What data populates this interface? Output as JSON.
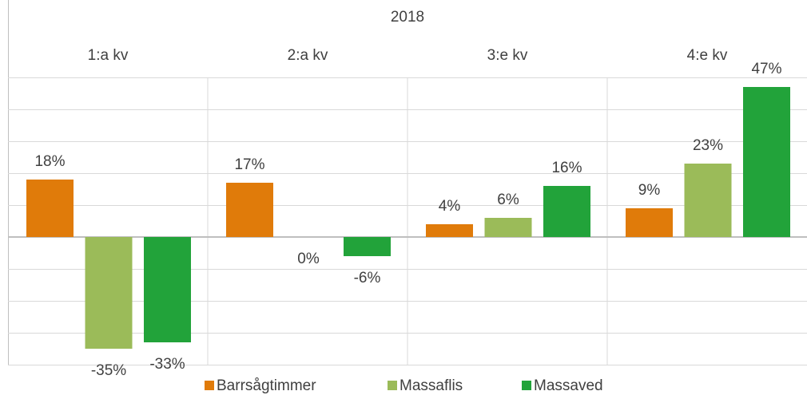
{
  "chart_data": {
    "type": "bar",
    "group_label": "2018",
    "categories": [
      "1:a kv",
      "2:a kv",
      "3:e kv",
      "4:e kv"
    ],
    "series": [
      {
        "name": "Barrsågtimmer",
        "color": "#e07b0a",
        "values": [
          18,
          17,
          4,
          9
        ],
        "value_labels": [
          "18%",
          "17%",
          "4%",
          "9%"
        ]
      },
      {
        "name": "Massaflis",
        "color": "#9bbb59",
        "values": [
          -35,
          0,
          6,
          23
        ],
        "value_labels": [
          "-35%",
          "0%",
          "6%",
          "23%"
        ]
      },
      {
        "name": "Massaved",
        "color": "#22a33a",
        "values": [
          -33,
          -6,
          16,
          47
        ],
        "value_labels": [
          "-33%",
          "-6%",
          "16%",
          "47%"
        ]
      }
    ],
    "ylim": [
      -40,
      50
    ],
    "yticks": [
      -40,
      -30,
      -20,
      -10,
      0,
      10,
      20,
      30,
      40,
      50
    ],
    "grid": true
  }
}
